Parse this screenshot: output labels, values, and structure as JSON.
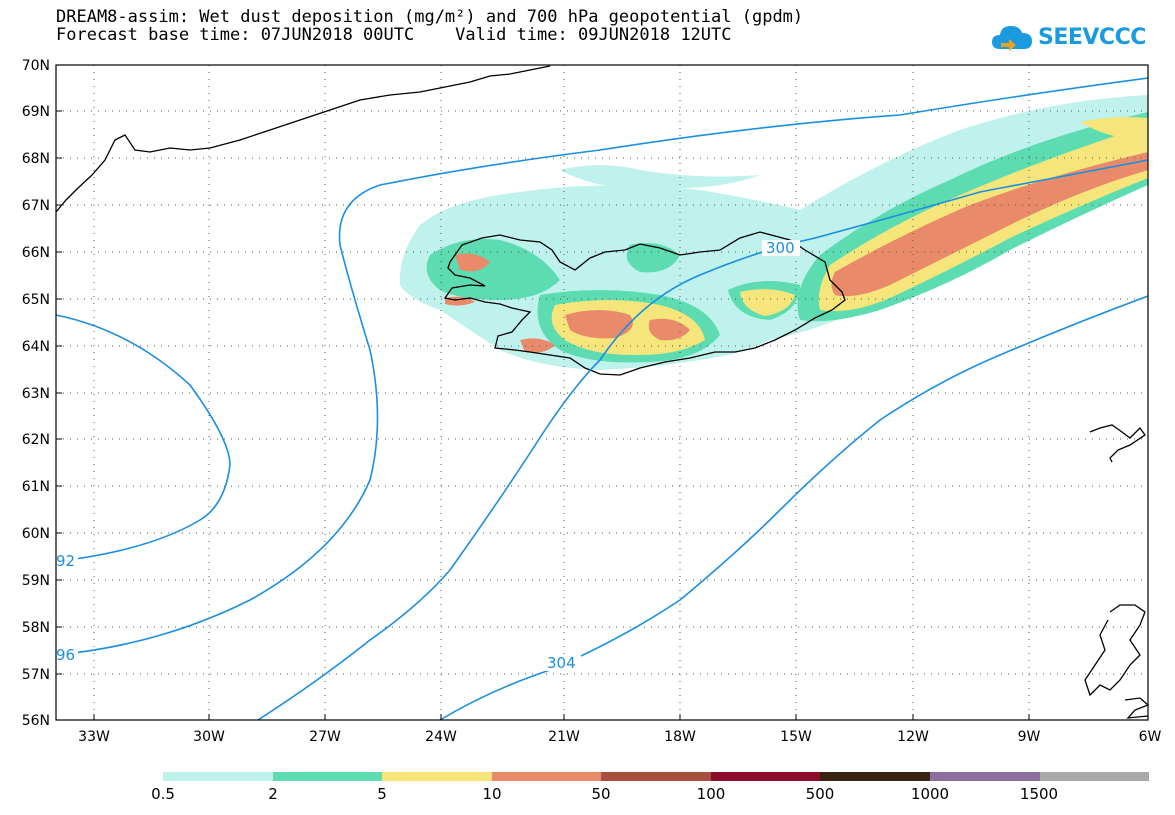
{
  "header": {
    "title_line1": "DREAM8-assim: Wet dust deposition (mg/m²) and 700 hPa geopotential (gpdm)",
    "title_line2": "Forecast base time: 07JUN2018 00UTC    Valid time: 09JUN2018 12UTC",
    "logo_text": "SEEVCCC",
    "logo_icon": "cloud-icon"
  },
  "map": {
    "lat_labels": [
      "70N",
      "69N",
      "68N",
      "67N",
      "66N",
      "65N",
      "64N",
      "63N",
      "62N",
      "61N",
      "60N",
      "59N",
      "58N",
      "57N",
      "56N"
    ],
    "lon_labels": [
      "33W",
      "30W",
      "27W",
      "24W",
      "21W",
      "18W",
      "15W",
      "12W",
      "9W",
      "6W"
    ],
    "contour_labels": [
      "300",
      "92",
      "96",
      "304"
    ],
    "contour_color": "#1a8fe0",
    "coastline_color": "#000000"
  },
  "legend": {
    "colors": [
      "#bff2ec",
      "#5cdcb0",
      "#f5e57a",
      "#e98a6a",
      "#a8503f",
      "#8a0e2c",
      "#3a2310",
      "#8f6d9e",
      "#a9a9a9"
    ],
    "labels": [
      "0.5",
      "2",
      "5",
      "10",
      "50",
      "100",
      "500",
      "1000",
      "1500"
    ]
  }
}
